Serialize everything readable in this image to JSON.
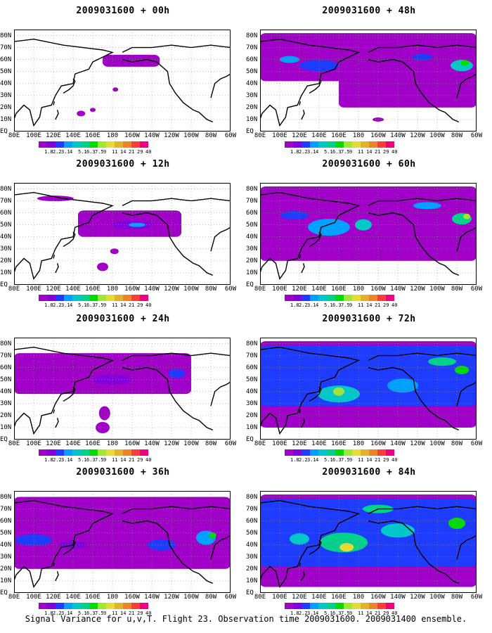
{
  "caption": "Signal Variance for u,v,T. Flight 23. Observation time 2009031600. 2009031400 ensemble.",
  "lat_labels": [
    "80N",
    "70N",
    "60N",
    "50N",
    "40N",
    "30N",
    "20N",
    "10N",
    "EQ"
  ],
  "lon_labels": [
    "80E",
    "100E",
    "120E",
    "140E",
    "160E",
    "180",
    "160W",
    "140W",
    "120W",
    "100W",
    "80W",
    "60W"
  ],
  "colorbar": {
    "colors": [
      "#a000c8",
      "#8200dc",
      "#1e3cff",
      "#00a0ff",
      "#00c8c8",
      "#00d28c",
      "#00dc00",
      "#a0e632",
      "#e6dc32",
      "#e6af2d",
      "#f08228",
      "#fa3c3c",
      "#f00082"
    ],
    "labels": [
      "1.8",
      "2.2",
      "3.1",
      "4",
      "5.1",
      "6.3",
      "7.5",
      "9",
      "11",
      "14",
      "21",
      "29",
      "40"
    ]
  },
  "panels": [
    {
      "title": "2009031600 + 00h",
      "coverage": 0
    },
    {
      "title": "2009031600 + 12h",
      "coverage": 1
    },
    {
      "title": "2009031600 + 24h",
      "coverage": 2
    },
    {
      "title": "2009031600 + 36h",
      "coverage": 3
    },
    {
      "title": "2009031600 + 48h",
      "coverage": 4
    },
    {
      "title": "2009031600 + 60h",
      "coverage": 5
    },
    {
      "title": "2009031600 + 72h",
      "coverage": 6
    },
    {
      "title": "2009031600 + 84h",
      "coverage": 7
    }
  ]
}
